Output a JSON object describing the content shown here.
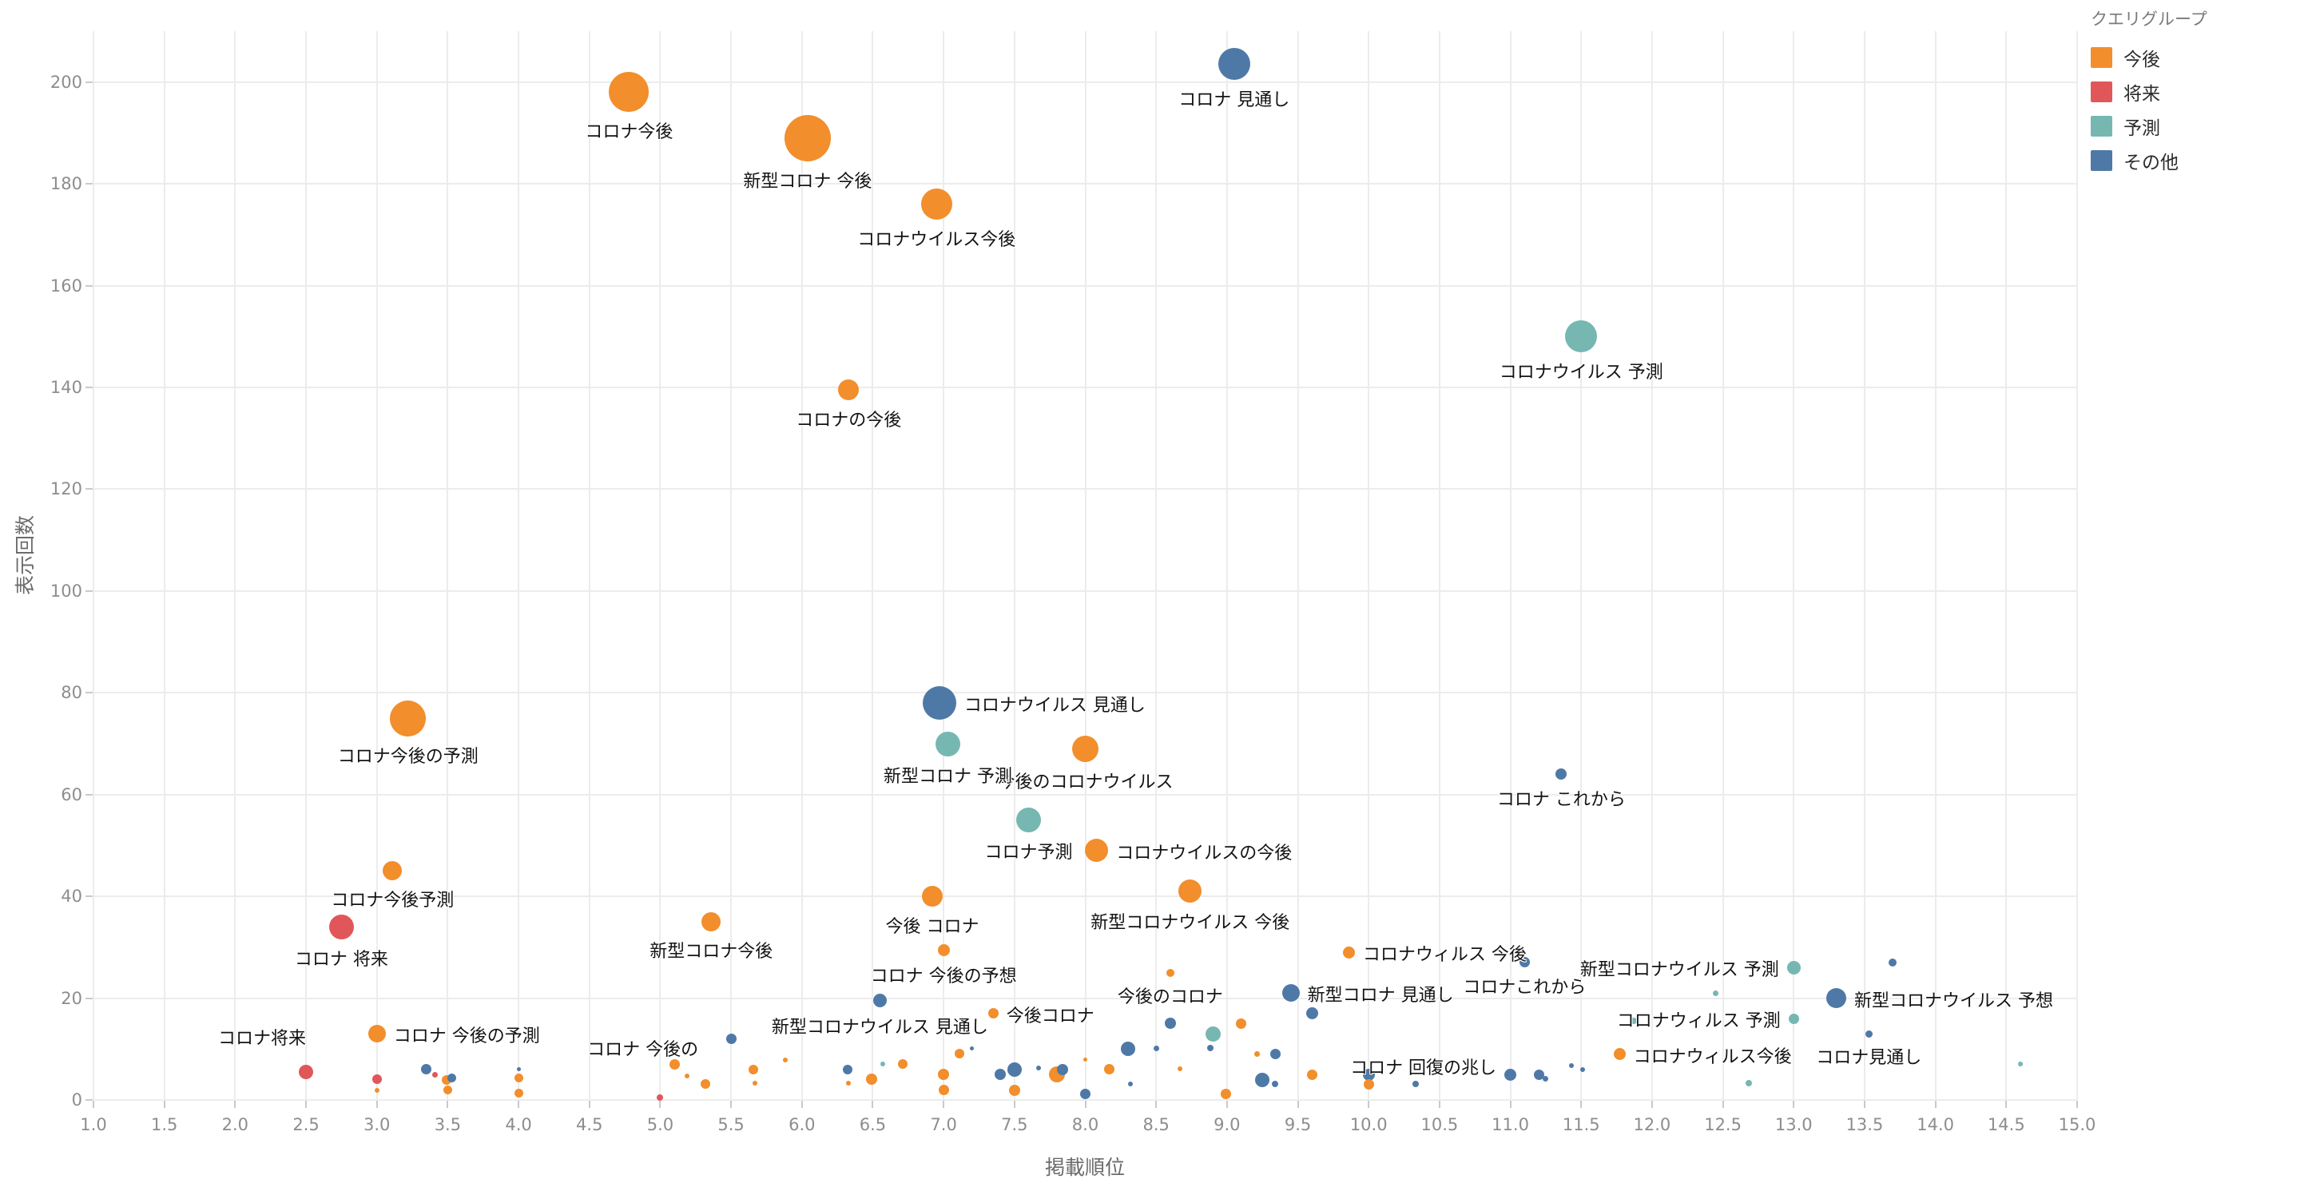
{
  "legend": {
    "title": "クエリグループ",
    "items": [
      {
        "label": "今後",
        "color": "#F28E2B"
      },
      {
        "label": "将来",
        "color": "#E15759"
      },
      {
        "label": "予測",
        "color": "#76B7B2"
      },
      {
        "label": "その他",
        "color": "#4E79A7"
      }
    ]
  },
  "axes": {
    "x": {
      "title": "掲載順位",
      "tick_labels": [
        "1.0",
        "1.5",
        "2.0",
        "2.5",
        "3.0",
        "3.5",
        "4.0",
        "4.5",
        "5.0",
        "5.5",
        "6.0",
        "6.5",
        "7.0",
        "7.5",
        "8.0",
        "8.5",
        "9.0",
        "9.5",
        "10.0",
        "10.5",
        "11.0",
        "11.5",
        "12.0",
        "12.5",
        "13.0",
        "13.5",
        "14.0",
        "14.5",
        "15.0"
      ]
    },
    "y": {
      "title": "表示回数",
      "tick_labels": [
        "0",
        "20",
        "40",
        "60",
        "80",
        "100",
        "120",
        "140",
        "160",
        "180",
        "200"
      ]
    }
  },
  "chart_data": {
    "type": "scatter",
    "title": "",
    "xlabel": "掲載順位",
    "ylabel": "表示回数",
    "xlim": [
      1.0,
      15.0
    ],
    "ylim": [
      0,
      210
    ],
    "x_tick_step": 0.5,
    "y_tick_step": 20,
    "grid": true,
    "legend_position": "top-right",
    "legend_title": "クエリグループ",
    "size_unit": "marker-diameter-px",
    "series": [
      {
        "name": "今後",
        "color": "#F28E2B",
        "points": [
          {
            "x": 4.78,
            "y": 198,
            "size": 50,
            "label": "コロナ今後",
            "label_pos": "below"
          },
          {
            "x": 6.04,
            "y": 189,
            "size": 58,
            "label": "新型コロナ 今後",
            "label_pos": "below"
          },
          {
            "x": 6.95,
            "y": 176,
            "size": 39,
            "label": "コロナウイルス今後",
            "label_pos": "below"
          },
          {
            "x": 6.33,
            "y": 139.5,
            "size": 26,
            "label": "コロナの今後",
            "label_pos": "below"
          },
          {
            "x": 3.22,
            "y": 75,
            "size": 45,
            "label": "コロナ今後の予測",
            "label_pos": "below"
          },
          {
            "x": 8.0,
            "y": 69,
            "size": 33,
            "label": "今後のコロナウイルス",
            "label_pos": "below"
          },
          {
            "x": 8.08,
            "y": 49,
            "size": 29,
            "label": "コロナウイルスの今後",
            "label_pos": "right"
          },
          {
            "x": 3.11,
            "y": 45,
            "size": 24,
            "label": "コロナ今後予測",
            "label_pos": "below"
          },
          {
            "x": 8.74,
            "y": 41,
            "size": 29,
            "label": "新型コロナウイルス 今後",
            "label_pos": "below"
          },
          {
            "x": 6.92,
            "y": 40,
            "size": 26,
            "label": "今後 コロナ",
            "label_pos": "below"
          },
          {
            "x": 5.36,
            "y": 35,
            "size": 24,
            "label": "新型コロナ今後",
            "label_pos": "below"
          },
          {
            "x": 7.0,
            "y": 29.5,
            "size": 15,
            "label": "コロナ 今後の予想",
            "label_pos": "below"
          },
          {
            "x": 9.86,
            "y": 29,
            "size": 15,
            "label": "コロナウィルス 今後",
            "label_pos": "right"
          },
          {
            "x": 8.6,
            "y": 25,
            "size": 10,
            "label": "今後のコロナ",
            "label_pos": "below"
          },
          {
            "x": 7.35,
            "y": 17,
            "size": 13,
            "label": "今後コロナ",
            "label_pos": "right"
          },
          {
            "x": 3.0,
            "y": 13,
            "size": 22,
            "label": "コロナ 今後の予測",
            "label_pos": "right"
          },
          {
            "x": 11.77,
            "y": 9,
            "size": 15,
            "label": "コロナウィルス今後",
            "label_pos": "right"
          },
          {
            "x": 5.1,
            "y": 7,
            "size": 13,
            "label": "コロナ 今後の",
            "label_pos": "above-left"
          },
          {
            "x": 3.0,
            "y": 1.9,
            "size": 6
          },
          {
            "x": 3.49,
            "y": 4.0,
            "size": 12
          },
          {
            "x": 3.5,
            "y": 2.0,
            "size": 11
          },
          {
            "x": 4.0,
            "y": 4.3,
            "size": 11
          },
          {
            "x": 4.0,
            "y": 1.3,
            "size": 11
          },
          {
            "x": 5.19,
            "y": 4.7,
            "size": 6
          },
          {
            "x": 5.32,
            "y": 3.1,
            "size": 12
          },
          {
            "x": 5.66,
            "y": 5.9,
            "size": 12
          },
          {
            "x": 5.67,
            "y": 3.3,
            "size": 6
          },
          {
            "x": 5.88,
            "y": 7.9,
            "size": 6
          },
          {
            "x": 6.33,
            "y": 3.3,
            "size": 6
          },
          {
            "x": 6.49,
            "y": 4.1,
            "size": 14
          },
          {
            "x": 6.71,
            "y": 7.0,
            "size": 12
          },
          {
            "x": 7.0,
            "y": 5.0,
            "size": 14
          },
          {
            "x": 7.0,
            "y": 2.0,
            "size": 13
          },
          {
            "x": 7.11,
            "y": 9.1,
            "size": 12
          },
          {
            "x": 7.5,
            "y": 1.9,
            "size": 14
          },
          {
            "x": 7.8,
            "y": 5.1,
            "size": 20
          },
          {
            "x": 8.0,
            "y": 8.0,
            "size": 5
          },
          {
            "x": 8.17,
            "y": 6.0,
            "size": 13
          },
          {
            "x": 8.67,
            "y": 6.1,
            "size": 6
          },
          {
            "x": 8.99,
            "y": 1.2,
            "size": 13
          },
          {
            "x": 9.1,
            "y": 15,
            "size": 13
          },
          {
            "x": 9.21,
            "y": 9.1,
            "size": 7
          },
          {
            "x": 9.6,
            "y": 4.9,
            "size": 13
          },
          {
            "x": 10.0,
            "y": 3.1,
            "size": 13
          }
        ]
      },
      {
        "name": "将来",
        "color": "#E15759",
        "points": [
          {
            "x": 2.75,
            "y": 34,
            "size": 31,
            "label": "コロナ 将来",
            "label_pos": "below"
          },
          {
            "x": 2.5,
            "y": 5.5,
            "size": 18,
            "label": "コロナ将来",
            "label_pos": "above-left",
            "dx": -30,
            "dy": -24
          },
          {
            "x": 3.0,
            "y": 4.1,
            "size": 12
          },
          {
            "x": 3.41,
            "y": 5.0,
            "size": 7
          },
          {
            "x": 5.0,
            "y": 0.5,
            "size": 8
          }
        ]
      },
      {
        "name": "予測",
        "color": "#76B7B2",
        "points": [
          {
            "x": 11.5,
            "y": 150,
            "size": 40,
            "label": "コロナウイルス 予測",
            "label_pos": "below"
          },
          {
            "x": 7.03,
            "y": 70,
            "size": 31,
            "label": "新型コロナ 予測",
            "label_pos": "below"
          },
          {
            "x": 7.6,
            "y": 55,
            "size": 31,
            "label": "コロナ予測",
            "label_pos": "below"
          },
          {
            "x": 13.0,
            "y": 26,
            "size": 17,
            "label": "新型コロナウイルス 予測",
            "label_pos": "left"
          },
          {
            "x": 13.0,
            "y": 16,
            "size": 13,
            "label": "コロナウィルス 予測",
            "label_pos": "left"
          },
          {
            "x": 6.57,
            "y": 7.0,
            "size": 6
          },
          {
            "x": 8.9,
            "y": 12.9,
            "size": 19
          },
          {
            "x": 11.87,
            "y": 15.5,
            "size": 8
          },
          {
            "x": 12.45,
            "y": 21,
            "size": 7
          },
          {
            "x": 12.68,
            "y": 3.3,
            "size": 8
          },
          {
            "x": 14.6,
            "y": 7.1,
            "size": 6
          }
        ]
      },
      {
        "name": "その他",
        "color": "#4E79A7",
        "points": [
          {
            "x": 9.05,
            "y": 203.5,
            "size": 40,
            "label": "コロナ 見通し",
            "label_pos": "below"
          },
          {
            "x": 6.97,
            "y": 78,
            "size": 42,
            "label": "コロナウイルス 見通し",
            "label_pos": "right"
          },
          {
            "x": 11.36,
            "y": 64,
            "size": 14,
            "label": "コロナ これから",
            "label_pos": "below"
          },
          {
            "x": 11.1,
            "y": 27,
            "size": 13,
            "label": "コロナこれから",
            "label_pos": "below"
          },
          {
            "x": 9.45,
            "y": 21,
            "size": 22,
            "label": "新型コロナ 見通し",
            "label_pos": "right"
          },
          {
            "x": 13.3,
            "y": 20,
            "size": 25,
            "label": "新型コロナウイルス 予想",
            "label_pos": "right"
          },
          {
            "x": 6.55,
            "y": 19.5,
            "size": 17,
            "label": "新型コロナウイルス 見通し",
            "label_pos": "below"
          },
          {
            "x": 13.53,
            "y": 13,
            "size": 9,
            "label": "コロナ見通し",
            "label_pos": "below"
          },
          {
            "x": 11.0,
            "y": 4.9,
            "size": 15,
            "label": "コロナ 回復の兆し",
            "label_pos": "left",
            "dy": -12
          },
          {
            "x": 3.35,
            "y": 6,
            "size": 13
          },
          {
            "x": 3.53,
            "y": 4.3,
            "size": 11
          },
          {
            "x": 4.0,
            "y": 6,
            "size": 5
          },
          {
            "x": 5.5,
            "y": 12,
            "size": 13
          },
          {
            "x": 6.32,
            "y": 6.0,
            "size": 12
          },
          {
            "x": 7.2,
            "y": 10.2,
            "size": 5
          },
          {
            "x": 7.4,
            "y": 5.0,
            "size": 14
          },
          {
            "x": 7.5,
            "y": 5.9,
            "size": 18
          },
          {
            "x": 7.67,
            "y": 6.2,
            "size": 6
          },
          {
            "x": 7.84,
            "y": 6.0,
            "size": 14
          },
          {
            "x": 8.0,
            "y": 1.2,
            "size": 13
          },
          {
            "x": 8.3,
            "y": 10,
            "size": 18
          },
          {
            "x": 8.32,
            "y": 3.2,
            "size": 6
          },
          {
            "x": 8.5,
            "y": 10.2,
            "size": 7
          },
          {
            "x": 8.6,
            "y": 15,
            "size": 14
          },
          {
            "x": 8.88,
            "y": 10.2,
            "size": 8
          },
          {
            "x": 9.25,
            "y": 4.0,
            "size": 18
          },
          {
            "x": 9.34,
            "y": 9.0,
            "size": 13
          },
          {
            "x": 9.34,
            "y": 3.1,
            "size": 8
          },
          {
            "x": 9.6,
            "y": 17,
            "size": 15
          },
          {
            "x": 10.0,
            "y": 4.9,
            "size": 15
          },
          {
            "x": 10.33,
            "y": 3.1,
            "size": 8
          },
          {
            "x": 11.2,
            "y": 4.9,
            "size": 13
          },
          {
            "x": 11.25,
            "y": 4.2,
            "size": 7
          },
          {
            "x": 11.43,
            "y": 6.8,
            "size": 6
          },
          {
            "x": 11.51,
            "y": 5.9,
            "size": 6
          },
          {
            "x": 13.7,
            "y": 27,
            "size": 10
          }
        ]
      }
    ]
  }
}
